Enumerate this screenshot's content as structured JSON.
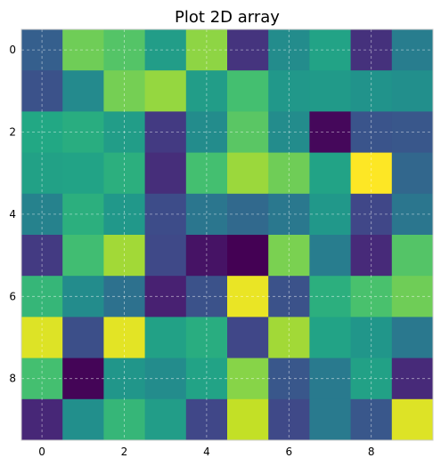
{
  "chart_data": {
    "type": "heatmap",
    "title": "Plot 2D array",
    "xlabel": "",
    "ylabel": "",
    "colormap": "viridis",
    "value_range": [
      0,
      1
    ],
    "x_ticks": [
      "0",
      "2",
      "4",
      "6",
      "8"
    ],
    "y_ticks": [
      "0",
      "2",
      "4",
      "6",
      "8"
    ],
    "xlim": [
      -0.5,
      9.5
    ],
    "ylim": [
      9.5,
      -0.5
    ],
    "grid": true,
    "values": [
      [
        0.3,
        0.78,
        0.73,
        0.55,
        0.83,
        0.15,
        0.48,
        0.58,
        0.14,
        0.42
      ],
      [
        0.25,
        0.47,
        0.79,
        0.84,
        0.55,
        0.7,
        0.53,
        0.54,
        0.51,
        0.49
      ],
      [
        0.6,
        0.62,
        0.55,
        0.17,
        0.48,
        0.74,
        0.48,
        0.02,
        0.26,
        0.27
      ],
      [
        0.57,
        0.58,
        0.63,
        0.13,
        0.7,
        0.85,
        0.78,
        0.58,
        1.0,
        0.33
      ],
      [
        0.44,
        0.63,
        0.53,
        0.23,
        0.39,
        0.34,
        0.4,
        0.53,
        0.21,
        0.39
      ],
      [
        0.17,
        0.69,
        0.86,
        0.22,
        0.05,
        0.0,
        0.8,
        0.42,
        0.12,
        0.73
      ],
      [
        0.66,
        0.48,
        0.37,
        0.09,
        0.25,
        0.97,
        0.25,
        0.63,
        0.71,
        0.78
      ],
      [
        0.95,
        0.24,
        0.96,
        0.57,
        0.62,
        0.21,
        0.86,
        0.58,
        0.52,
        0.4
      ],
      [
        0.7,
        0.01,
        0.52,
        0.48,
        0.58,
        0.82,
        0.27,
        0.41,
        0.57,
        0.12
      ],
      [
        0.11,
        0.49,
        0.66,
        0.55,
        0.21,
        0.91,
        0.22,
        0.41,
        0.27,
        0.95
      ]
    ]
  }
}
